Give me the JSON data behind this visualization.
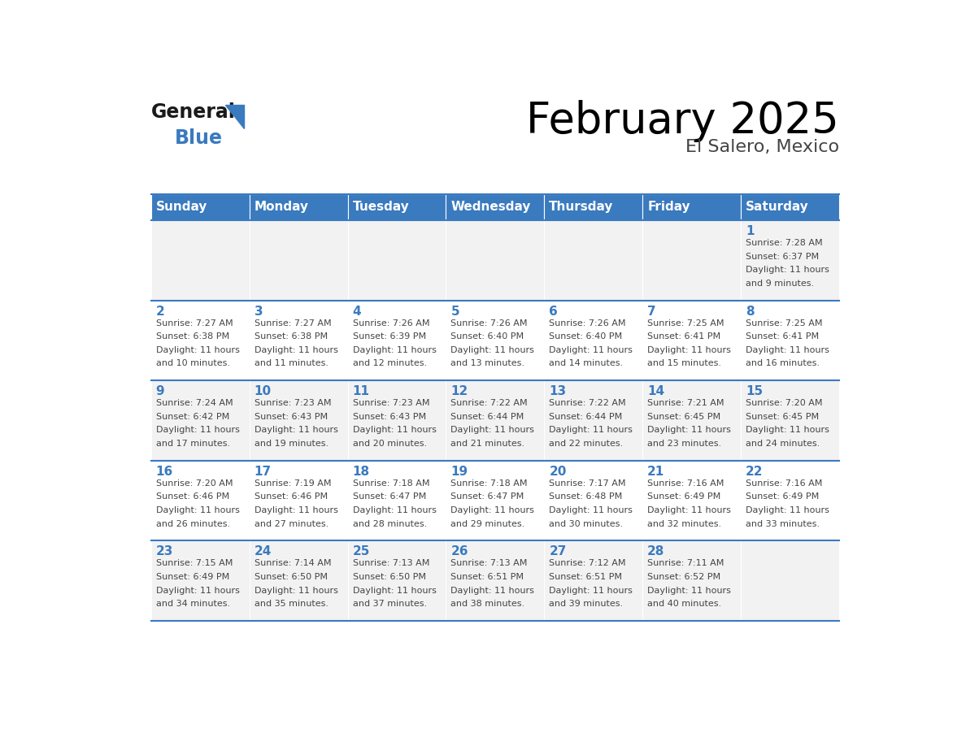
{
  "title": "February 2025",
  "subtitle": "El Salero, Mexico",
  "header_bg_color": "#3a7abf",
  "header_text_color": "#ffffff",
  "row_bg_colors": [
    "#f2f2f2",
    "#ffffff",
    "#f2f2f2",
    "#ffffff",
    "#f2f2f2"
  ],
  "days_of_week": [
    "Sunday",
    "Monday",
    "Tuesday",
    "Wednesday",
    "Thursday",
    "Friday",
    "Saturday"
  ],
  "title_color": "#000000",
  "subtitle_color": "#444444",
  "day_number_color": "#3a7abf",
  "cell_text_color": "#444444",
  "line_color": "#3a7abf",
  "calendar_data": [
    [
      null,
      null,
      null,
      null,
      null,
      null,
      {
        "day": 1,
        "sunrise": "7:28 AM",
        "sunset": "6:37 PM",
        "daylight": "11 hours and 9 minutes."
      }
    ],
    [
      {
        "day": 2,
        "sunrise": "7:27 AM",
        "sunset": "6:38 PM",
        "daylight": "11 hours and 10 minutes."
      },
      {
        "day": 3,
        "sunrise": "7:27 AM",
        "sunset": "6:38 PM",
        "daylight": "11 hours and 11 minutes."
      },
      {
        "day": 4,
        "sunrise": "7:26 AM",
        "sunset": "6:39 PM",
        "daylight": "11 hours and 12 minutes."
      },
      {
        "day": 5,
        "sunrise": "7:26 AM",
        "sunset": "6:40 PM",
        "daylight": "11 hours and 13 minutes."
      },
      {
        "day": 6,
        "sunrise": "7:26 AM",
        "sunset": "6:40 PM",
        "daylight": "11 hours and 14 minutes."
      },
      {
        "day": 7,
        "sunrise": "7:25 AM",
        "sunset": "6:41 PM",
        "daylight": "11 hours and 15 minutes."
      },
      {
        "day": 8,
        "sunrise": "7:25 AM",
        "sunset": "6:41 PM",
        "daylight": "11 hours and 16 minutes."
      }
    ],
    [
      {
        "day": 9,
        "sunrise": "7:24 AM",
        "sunset": "6:42 PM",
        "daylight": "11 hours and 17 minutes."
      },
      {
        "day": 10,
        "sunrise": "7:23 AM",
        "sunset": "6:43 PM",
        "daylight": "11 hours and 19 minutes."
      },
      {
        "day": 11,
        "sunrise": "7:23 AM",
        "sunset": "6:43 PM",
        "daylight": "11 hours and 20 minutes."
      },
      {
        "day": 12,
        "sunrise": "7:22 AM",
        "sunset": "6:44 PM",
        "daylight": "11 hours and 21 minutes."
      },
      {
        "day": 13,
        "sunrise": "7:22 AM",
        "sunset": "6:44 PM",
        "daylight": "11 hours and 22 minutes."
      },
      {
        "day": 14,
        "sunrise": "7:21 AM",
        "sunset": "6:45 PM",
        "daylight": "11 hours and 23 minutes."
      },
      {
        "day": 15,
        "sunrise": "7:20 AM",
        "sunset": "6:45 PM",
        "daylight": "11 hours and 24 minutes."
      }
    ],
    [
      {
        "day": 16,
        "sunrise": "7:20 AM",
        "sunset": "6:46 PM",
        "daylight": "11 hours and 26 minutes."
      },
      {
        "day": 17,
        "sunrise": "7:19 AM",
        "sunset": "6:46 PM",
        "daylight": "11 hours and 27 minutes."
      },
      {
        "day": 18,
        "sunrise": "7:18 AM",
        "sunset": "6:47 PM",
        "daylight": "11 hours and 28 minutes."
      },
      {
        "day": 19,
        "sunrise": "7:18 AM",
        "sunset": "6:47 PM",
        "daylight": "11 hours and 29 minutes."
      },
      {
        "day": 20,
        "sunrise": "7:17 AM",
        "sunset": "6:48 PM",
        "daylight": "11 hours and 30 minutes."
      },
      {
        "day": 21,
        "sunrise": "7:16 AM",
        "sunset": "6:49 PM",
        "daylight": "11 hours and 32 minutes."
      },
      {
        "day": 22,
        "sunrise": "7:16 AM",
        "sunset": "6:49 PM",
        "daylight": "11 hours and 33 minutes."
      }
    ],
    [
      {
        "day": 23,
        "sunrise": "7:15 AM",
        "sunset": "6:49 PM",
        "daylight": "11 hours and 34 minutes."
      },
      {
        "day": 24,
        "sunrise": "7:14 AM",
        "sunset": "6:50 PM",
        "daylight": "11 hours and 35 minutes."
      },
      {
        "day": 25,
        "sunrise": "7:13 AM",
        "sunset": "6:50 PM",
        "daylight": "11 hours and 37 minutes."
      },
      {
        "day": 26,
        "sunrise": "7:13 AM",
        "sunset": "6:51 PM",
        "daylight": "11 hours and 38 minutes."
      },
      {
        "day": 27,
        "sunrise": "7:12 AM",
        "sunset": "6:51 PM",
        "daylight": "11 hours and 39 minutes."
      },
      {
        "day": 28,
        "sunrise": "7:11 AM",
        "sunset": "6:52 PM",
        "daylight": "11 hours and 40 minutes."
      },
      null
    ]
  ]
}
